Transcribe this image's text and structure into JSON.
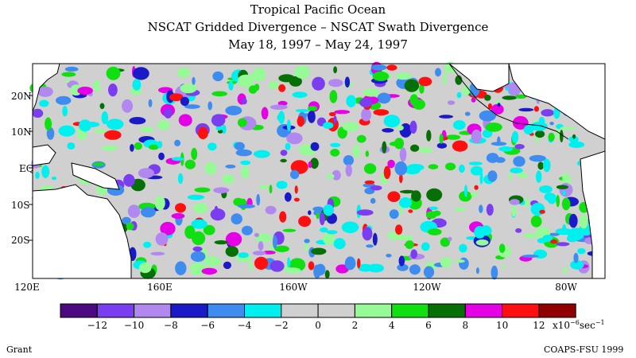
{
  "titles": {
    "line1": "Tropical Pacific Ocean",
    "line2": "NSCAT Gridded Divergence – NSCAT Swath Divergence",
    "line3": "May 18, 1997 – May 24, 1997"
  },
  "lat_labels": [
    "20N",
    "10N",
    "EQ",
    "10S",
    "20S"
  ],
  "lon_labels": [
    "120E",
    "160E",
    "160W",
    "120W",
    "80W"
  ],
  "colorbar": {
    "tick_labels": [
      "-12",
      "-10",
      "-8",
      "-6",
      "-4",
      "-2",
      "0",
      "2",
      "4",
      "6",
      "8",
      "10",
      "12"
    ],
    "units_prefix": "x10",
    "units_exp1": "-6",
    "units_mid": "sec",
    "units_exp2": "-1",
    "colors": [
      "#4b0a82",
      "#7a3df0",
      "#b088f0",
      "#1a1ac8",
      "#3f8cf0",
      "#00f0f0",
      "#d0d0d0",
      "#d0d0d0",
      "#96fa96",
      "#10e010",
      "#067006",
      "#e600e6",
      "#ff1010",
      "#900000"
    ]
  },
  "footer": {
    "left": "Grant",
    "right": "COAPS-FSU 1999"
  }
}
